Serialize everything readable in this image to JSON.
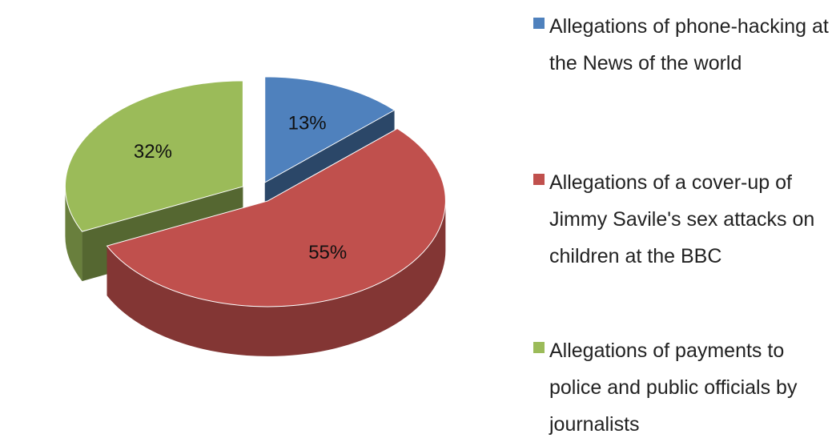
{
  "chart_data": {
    "type": "pie",
    "categories": [
      "Allegations of phone-hacking at the News of the world",
      "Allegations of a cover-up of Jimmy Savile's sex attacks on children at the BBC",
      "Allegations of payments to police and public officials by journalists"
    ],
    "values": [
      13,
      55,
      32
    ],
    "value_labels": [
      "13%",
      "55%",
      "32%"
    ],
    "colors": [
      "#4f81bd",
      "#c0504d",
      "#9bbb59"
    ],
    "legend": "right"
  }
}
